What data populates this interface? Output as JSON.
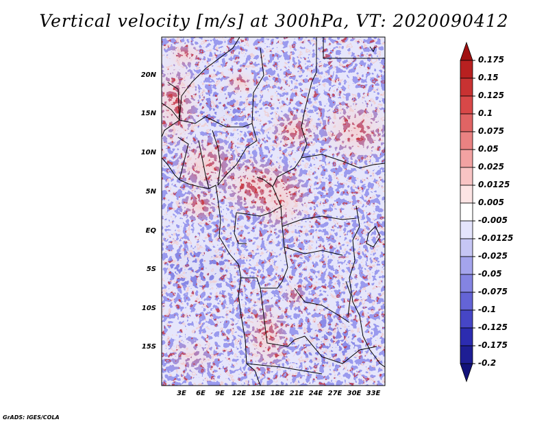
{
  "title": "Vertical velocity [m/s] at 300hPa, VT: 2020090412",
  "credit": "GrADS: IGES/COLA",
  "lat_labels": [
    "20N",
    "15N",
    "10N",
    "5N",
    "EQ",
    "5S",
    "10S",
    "15S"
  ],
  "lon_labels": [
    "3E",
    "6E",
    "9E",
    "12E",
    "15E",
    "18E",
    "21E",
    "24E",
    "27E",
    "30E",
    "33E"
  ],
  "colorbar": {
    "labels": [
      "0.175",
      "0.15",
      "0.125",
      "0.1",
      "0.075",
      "0.05",
      "0.025",
      "0.0125",
      "0.005",
      "-0.005",
      "-0.0125",
      "-0.025",
      "-0.05",
      "-0.075",
      "-0.1",
      "-0.125",
      "-0.175",
      "-0.2"
    ],
    "colors": [
      "#a01010",
      "#b82020",
      "#c83232",
      "#d84848",
      "#e06464",
      "#ea8282",
      "#f2a2a2",
      "#f8c4c4",
      "#fce4e4",
      "#ffffff",
      "#e4e4fc",
      "#c6c6f4",
      "#a4a4ec",
      "#8484e2",
      "#6464d6",
      "#4646c6",
      "#2c2cb0",
      "#1e1e94",
      "#12127a"
    ]
  }
}
